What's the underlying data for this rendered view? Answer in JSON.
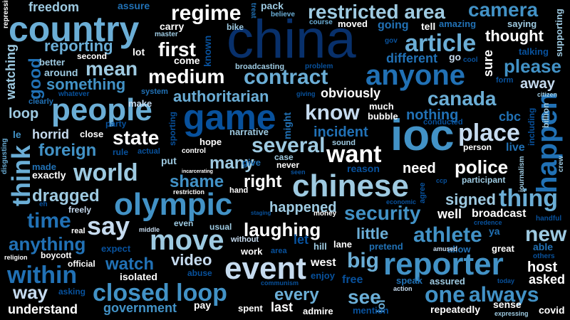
{
  "palette": [
    "#ffffff",
    "#c6dbef",
    "#9ecae1",
    "#6baed6",
    "#4292c6",
    "#2171b5",
    "#08519c",
    "#08306b"
  ],
  "words": {
    "china": "china",
    "ioc": "ioc",
    "game": "game",
    "country": "country",
    "chinese": "chinese",
    "reporter": "reporter",
    "olympic": "olympic",
    "people": "people",
    "event": "event",
    "anyone": "anyone",
    "move": "move",
    "closed_loop": "closed loop",
    "world": "world",
    "restricted_area": "restricted area",
    "happen": "happen",
    "place": "place",
    "think": "think",
    "want": "want",
    "thing": "thing",
    "security": "security",
    "within": "within",
    "article": "article",
    "camera": "camera",
    "know": "know",
    "several": "several",
    "time": "time",
    "athlete": "athlete",
    "say": "say",
    "big": "big",
    "alwayss": "always",
    "police": "police",
    "regime": "regime",
    "contract": "contract",
    "mean": "mean",
    "first": "first",
    "state": "state",
    "medium": "medium",
    "authoritarian": "authoritarian",
    "something": "something",
    "foreign": "foreign",
    "dragged": "dragged",
    "video": "video",
    "anything": "anything",
    "new": "new",
    "canada": "canada",
    "shame": "shame",
    "please": "please",
    "laughing": "laughing",
    "happened": "happened",
    "right": "right",
    "many": "many",
    "watch": "watch",
    "every": "every",
    "reporting": "reporting",
    "way": "way",
    "see": "see",
    "one": "one",
    "need": "need",
    "signed": "signed",
    "incident": "incident",
    "thought": "thought",
    "obviously": "obviously",
    "little": "little",
    "nothing": "nothing",
    "good": "good",
    "understand": "understand",
    "host": "host",
    "away": "away",
    "freedom": "freedom",
    "loop": "loop",
    "watching": "watching",
    "government": "government",
    "horrid": "horrid",
    "exactly": "exactly",
    "lot": "lot",
    "well": "well",
    "broadcast": "broadcast",
    "live": "live",
    "sure": "sure",
    "asked": "asked",
    "assure": "assure",
    "pack": "pack",
    "carry": "carry",
    "bike": "bike",
    "tell": "tell",
    "going": "going",
    "amazing": "amazing",
    "saying": "saying",
    "supporting": "supporting",
    "repressing": "repressing",
    "treat": "treat",
    "believe": "believe",
    "master": "master",
    "course": "course",
    "moved": "moved",
    "gov": "gov",
    "different": "different",
    "go": "go",
    "cool": "cool",
    "talking": "talking",
    "second": "second",
    "better": "better",
    "around": "around",
    "come": "come",
    "known": "known",
    "broadcasting": "broadcasting",
    "problem": "problem",
    "form": "form",
    "whatever": "whatever",
    "system": "system",
    "giving": "giving",
    "citizen": "citizen",
    "clearly": "clearly",
    "make": "make",
    "much": "much",
    "party": "party",
    "bubble": "bubble",
    "cbc": "cbc",
    "billion": "billion",
    "le": "le",
    "close": "close",
    "sporting": "sporting",
    "narrative": "narrative",
    "might": "might",
    "conducted": "conducted",
    "including": "including",
    "rule": "rule",
    "actual": "actual",
    "hope": "hope",
    "sound": "sound",
    "person": "person",
    "journalism": "journalism",
    "disgusting": "disgusting",
    "made": "made",
    "control": "control",
    "case": "case",
    "crew": "crew",
    "put": "put",
    "give": "give",
    "never": "never",
    "reason": "reason",
    "incarcerating": "incarcerating",
    "seen": "seen",
    "ccp": "ccp",
    "participant": "participant",
    "restriction": "restriction",
    "hand": "hand",
    "agree": "agree",
    "eh": "eh",
    "economic": "economic",
    "freely": "freely",
    "staging": "staging",
    "money": "money",
    "handful": "handful",
    "real": "real",
    "even": "even",
    "middle": "middle",
    "usual": "usual",
    "credence": "credence",
    "ya": "ya",
    "religion": "religion",
    "boycott": "boycott",
    "expect": "expect",
    "without": "without",
    "let": "let",
    "hill": "hill",
    "lane": "lane",
    "pretend": "pretend",
    "allow": "allow",
    "great": "great",
    "able": "able",
    "others": "others",
    "official": "official",
    "work": "work",
    "area": "area",
    "amused": "amused",
    "isolated": "isolated",
    "abuse": "abuse",
    "enjoy": "enjoy",
    "west": "west",
    "asking": "asking",
    "communism": "communism",
    "speak": "speak",
    "action": "action",
    "assured": "assured",
    "today": "today",
    "free": "free",
    "lol": "lol",
    "pay": "pay",
    "spent": "spent",
    "last": "last",
    "admire": "admire",
    "mention": "mention",
    "repeatedly": "repeatedly",
    "sense": "sense",
    "expressing": "expressing",
    "covid": "covid"
  }
}
